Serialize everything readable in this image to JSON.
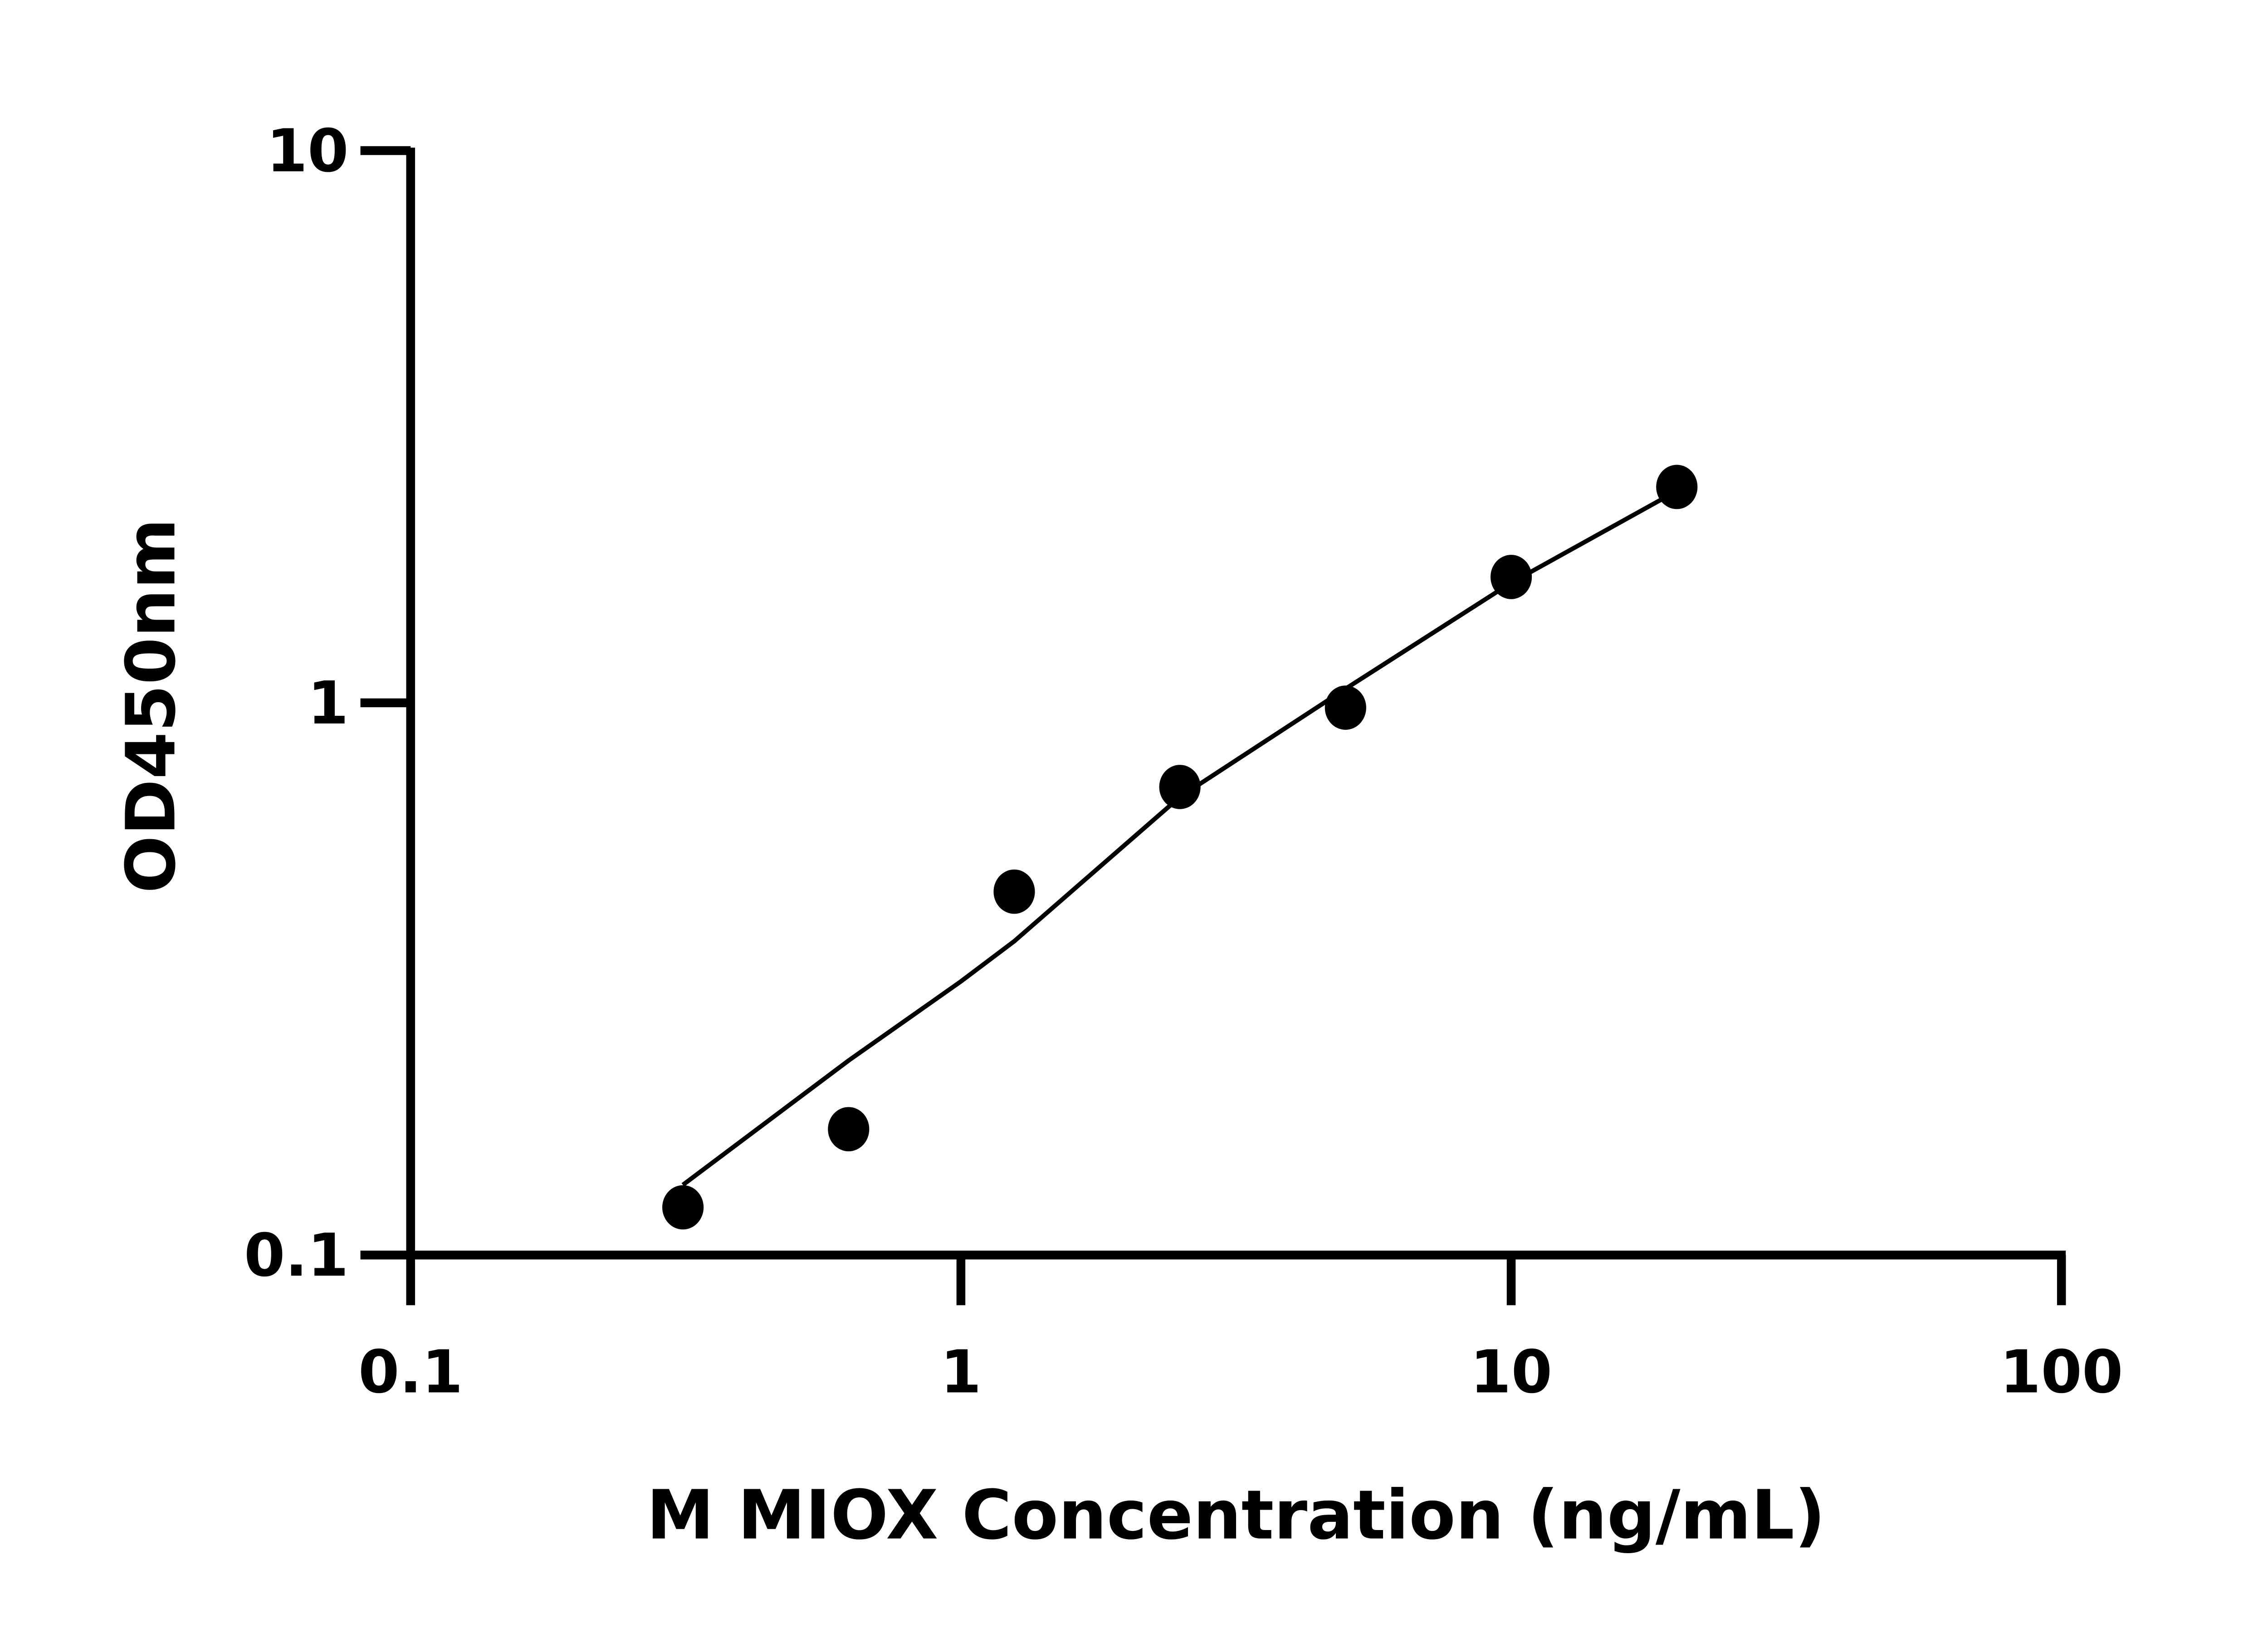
{
  "chart_data": {
    "type": "scatter",
    "xlabel": "M MIOX Concentration (ng/mL)",
    "ylabel": "OD450nm",
    "x_scale": "log",
    "y_scale": "log",
    "xlim": [
      0.1,
      100
    ],
    "ylim": [
      0.1,
      10
    ],
    "x_ticks": [
      "0.1",
      "1",
      "10",
      "100"
    ],
    "y_ticks": [
      "0.1",
      "1",
      "10"
    ],
    "grid": false,
    "points": {
      "x": [
        0.3125,
        0.625,
        1.25,
        2.5,
        5,
        10,
        20
      ],
      "y": [
        0.122,
        0.169,
        0.455,
        0.704,
        0.98,
        1.69,
        2.46
      ]
    },
    "fit_curve": {
      "x": [
        0.3125,
        0.625,
        1,
        1.25,
        2.5,
        5,
        10,
        20
      ],
      "y": [
        0.134,
        0.225,
        0.313,
        0.37,
        0.675,
        1.06,
        1.65,
        2.42
      ]
    },
    "colors": {
      "points": "#000000",
      "line": "#000000",
      "axes": "#000000"
    }
  }
}
